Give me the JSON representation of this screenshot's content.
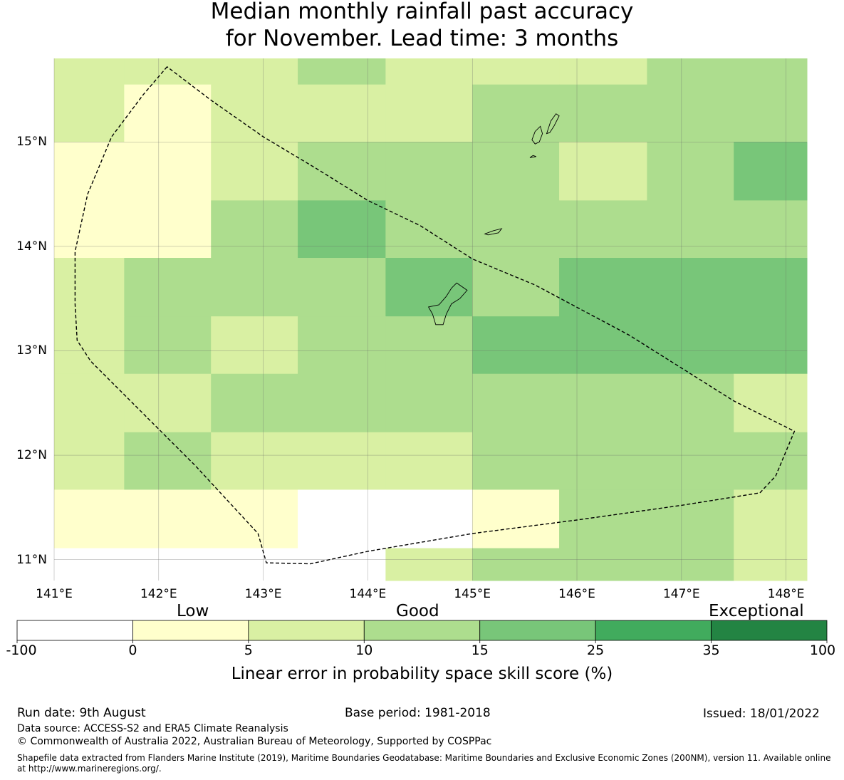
{
  "title": {
    "line1": "Median monthly rainfall past accuracy",
    "line2": "for November. Lead time: 3 months"
  },
  "map": {
    "lon_labels": [
      "141°E",
      "142°E",
      "143°E",
      "144°E",
      "145°E",
      "146°E",
      "147°E",
      "148°E"
    ],
    "lat_labels": [
      "15°N",
      "14°N",
      "13°N",
      "12°N",
      "11°N"
    ],
    "lon_ticks": [
      141,
      142,
      143,
      144,
      145,
      146,
      147,
      148
    ],
    "lat_ticks": [
      15,
      14,
      13,
      12,
      11
    ],
    "lon_range": [
      141.0,
      148.2
    ],
    "lat_range": [
      10.8,
      15.8
    ],
    "grid": true,
    "color_scale": [
      {
        "from": -100,
        "to": 0,
        "color": "#ffffff"
      },
      {
        "from": 0,
        "to": 5,
        "color": "#ffffcc"
      },
      {
        "from": 5,
        "to": 10,
        "color": "#d9f0a3"
      },
      {
        "from": 10,
        "to": 15,
        "color": "#addd8e"
      },
      {
        "from": 15,
        "to": 25,
        "color": "#78c679"
      },
      {
        "from": 25,
        "to": 35,
        "color": "#41ab5d"
      },
      {
        "from": 35,
        "to": 100,
        "color": "#238443"
      }
    ],
    "column_lon_edges": [
      141.0,
      141.67,
      142.5,
      143.33,
      144.17,
      145.0,
      145.83,
      146.67,
      147.5,
      148.2
    ],
    "row_lat_edges": [
      15.8,
      15.55,
      15.0,
      14.44,
      13.89,
      13.33,
      12.78,
      12.22,
      11.67,
      11.11,
      10.8
    ],
    "cell_classes": [
      [
        2,
        2,
        2,
        3,
        2,
        2,
        2,
        3,
        3
      ],
      [
        2,
        1,
        2,
        2,
        2,
        3,
        3,
        3,
        3
      ],
      [
        1,
        1,
        2,
        3,
        3,
        3,
        2,
        3,
        4
      ],
      [
        1,
        1,
        3,
        4,
        3,
        3,
        3,
        3,
        3
      ],
      [
        2,
        3,
        3,
        3,
        4,
        3,
        4,
        4,
        4
      ],
      [
        2,
        3,
        2,
        3,
        3,
        4,
        4,
        4,
        4
      ],
      [
        2,
        2,
        3,
        3,
        3,
        3,
        3,
        3,
        2
      ],
      [
        2,
        3,
        2,
        2,
        2,
        3,
        3,
        3,
        3
      ],
      [
        1,
        1,
        1,
        0,
        0,
        1,
        3,
        3,
        2
      ],
      [
        0,
        0,
        0,
        0,
        2,
        3,
        3,
        3,
        2
      ]
    ],
    "eez_boundary_lonlat": [
      [
        142.08,
        15.72
      ],
      [
        141.85,
        15.45
      ],
      [
        141.55,
        15.05
      ],
      [
        141.32,
        14.5
      ],
      [
        141.2,
        13.95
      ],
      [
        141.2,
        13.45
      ],
      [
        141.22,
        13.1
      ],
      [
        141.35,
        12.9
      ],
      [
        141.85,
        12.4
      ],
      [
        142.35,
        11.9
      ],
      [
        142.95,
        11.25
      ],
      [
        143.03,
        10.97
      ],
      [
        143.45,
        10.96
      ],
      [
        144.0,
        11.08
      ],
      [
        145.0,
        11.25
      ],
      [
        146.0,
        11.38
      ],
      [
        147.0,
        11.52
      ],
      [
        147.75,
        11.64
      ],
      [
        147.9,
        11.8
      ],
      [
        148.08,
        12.23
      ],
      [
        147.5,
        12.52
      ],
      [
        146.5,
        13.15
      ],
      [
        145.6,
        13.63
      ],
      [
        145.0,
        13.88
      ],
      [
        144.5,
        14.2
      ],
      [
        144.0,
        14.44
      ],
      [
        143.5,
        14.75
      ],
      [
        143.0,
        15.05
      ],
      [
        142.5,
        15.4
      ],
      [
        142.08,
        15.72
      ]
    ],
    "islands_lonlat": [
      [
        [
          144.65,
          13.25
        ],
        [
          144.62,
          13.35
        ],
        [
          144.58,
          13.42
        ],
        [
          144.68,
          13.44
        ],
        [
          144.75,
          13.52
        ],
        [
          144.8,
          13.6
        ],
        [
          144.85,
          13.65
        ],
        [
          144.95,
          13.58
        ],
        [
          144.88,
          13.5
        ],
        [
          144.8,
          13.45
        ],
        [
          144.75,
          13.35
        ],
        [
          144.72,
          13.25
        ]
      ],
      [
        [
          145.12,
          14.12
        ],
        [
          145.2,
          14.15
        ],
        [
          145.28,
          14.17
        ],
        [
          145.25,
          14.13
        ],
        [
          145.15,
          14.11
        ]
      ],
      [
        [
          145.57,
          15.02
        ],
        [
          145.6,
          15.1
        ],
        [
          145.65,
          15.15
        ],
        [
          145.67,
          15.08
        ],
        [
          145.64,
          15.0
        ],
        [
          145.6,
          14.98
        ]
      ],
      [
        [
          145.55,
          14.85
        ],
        [
          145.58,
          14.87
        ],
        [
          145.61,
          14.86
        ]
      ],
      [
        [
          145.71,
          15.08
        ],
        [
          145.75,
          15.2
        ],
        [
          145.8,
          15.27
        ],
        [
          145.83,
          15.25
        ],
        [
          145.78,
          15.15
        ],
        [
          145.74,
          15.09
        ]
      ]
    ]
  },
  "legend": {
    "categories": [
      "Low",
      "Good",
      "Exceptional"
    ],
    "ticks": [
      "-100",
      "0",
      "5",
      "10",
      "15",
      "25",
      "35",
      "100"
    ],
    "label": "Linear error in probability space skill score (%)"
  },
  "footer": {
    "run_date": "Run date: 9th August",
    "base_period": "Base period: 1981-2018",
    "issued": "Issued: 18/01/2022",
    "data_source": "Data source: ACCESS-S2 and ERA5 Climate Reanalysis",
    "copyright": "© Commonwealth of Australia 2022, Australian Bureau of Meteorology, Supported by COSPPac",
    "shapefile": "Shapefile data extracted from Flanders Marine Institute (2019), Maritime Boundaries Geodatabase: Maritime Boundaries and Exclusive Economic Zones (200NM), version 11. Available online at http://www.marineregions.org/."
  }
}
